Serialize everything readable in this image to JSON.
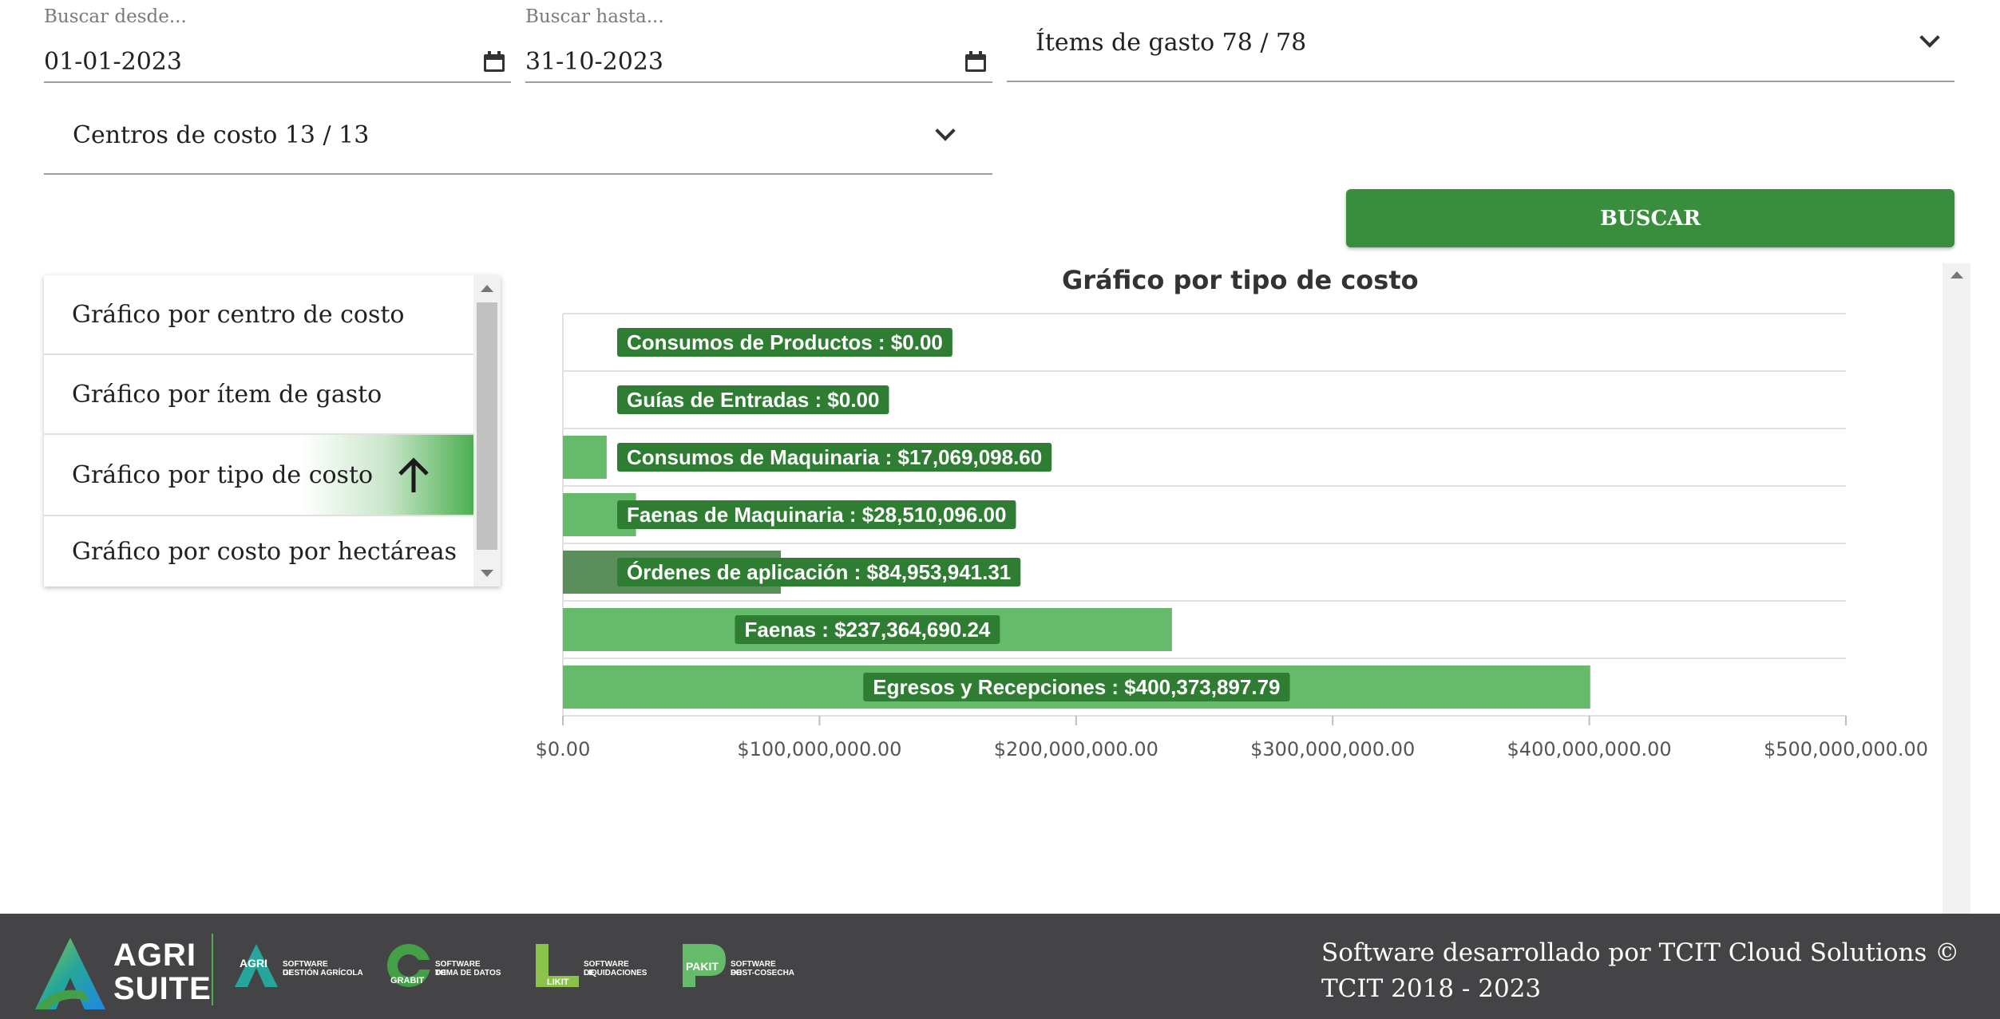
{
  "filters": {
    "date_from": {
      "label": "Buscar desde...",
      "value": "01-01-2023"
    },
    "date_to": {
      "label": "Buscar hasta...",
      "value": "31-10-2023"
    },
    "items_select": {
      "value": "Ítems de gasto 78 / 78"
    },
    "centers_select": {
      "value": "Centros de costo 13 / 13"
    },
    "search_label": "BUSCAR"
  },
  "menu": {
    "items": [
      {
        "label": "Gráfico por centro de costo"
      },
      {
        "label": "Gráfico por ítem de gasto"
      },
      {
        "label": "Gráfico por tipo de costo"
      },
      {
        "label": "Gráfico por costo por hectáreas"
      }
    ],
    "active_index": 2,
    "icons": {
      "active": "arrow-up-icon"
    }
  },
  "chart_data": {
    "type": "bar",
    "orientation": "horizontal",
    "title": "Gráfico por tipo de costo",
    "categories": [
      "Consumos de Productos",
      "Guías de Entradas",
      "Consumos de Maquinaria",
      "Faenas de Maquinaria",
      "Órdenes de aplicación",
      "Faenas",
      "Egresos y Recepciones"
    ],
    "values": [
      0,
      0,
      17069098.6,
      28510096.0,
      84953941.31,
      237364690.24,
      400373897.79
    ],
    "data_labels": [
      "Consumos de Productos : $0.00",
      "Guías de Entradas : $0.00",
      "Consumos de Maquinaria : $17,069,098.60",
      "Faenas de Maquinaria : $28,510,096.00",
      "Órdenes de aplicación : $84,953,941.31",
      "Faenas : $237,364,690.24",
      "Egresos y Recepciones : $400,373,897.79"
    ],
    "xlim": [
      0,
      500000000
    ],
    "x_ticks": [
      0,
      100000000,
      200000000,
      300000000,
      400000000,
      500000000
    ],
    "x_tick_labels": [
      "$0.00",
      "$100,000,000.00",
      "$200,000,000.00",
      "$300,000,000.00",
      "$400,000,000.00",
      "$500,000,000.00"
    ],
    "highlight_index": 4,
    "colors": {
      "bar": "#66bb6a",
      "bar_highlight": "#5a8f5c",
      "label_bg": "#2e7d32",
      "grid": "#e0e0e0"
    }
  },
  "footer": {
    "credit": "Software desarrollado por TCIT Cloud Solutions © TCIT 2018 - 2023",
    "brand": {
      "line1": "AGRI",
      "line2": "SUITE"
    },
    "products": [
      {
        "mark": "AGRI",
        "line1": "SOFTWARE DE",
        "line2": "GESTIÓN AGRÍCOLA"
      },
      {
        "mark": "GRABIT",
        "line1": "SOFTWARE DE",
        "line2": "TOMA DE DATOS"
      },
      {
        "mark": "LIKIT",
        "line1": "SOFTWARE DE",
        "line2": "LIQUIDACIONES"
      },
      {
        "mark": "PAKIT",
        "line1": "SOFTWARE DE",
        "line2": "POST-COSECHA"
      }
    ],
    "colors": {
      "background": "#444446",
      "accent": "#4caf50"
    }
  },
  "icons": {
    "calendar": "calendar-icon",
    "dropdown": "chevron-down-icon"
  }
}
